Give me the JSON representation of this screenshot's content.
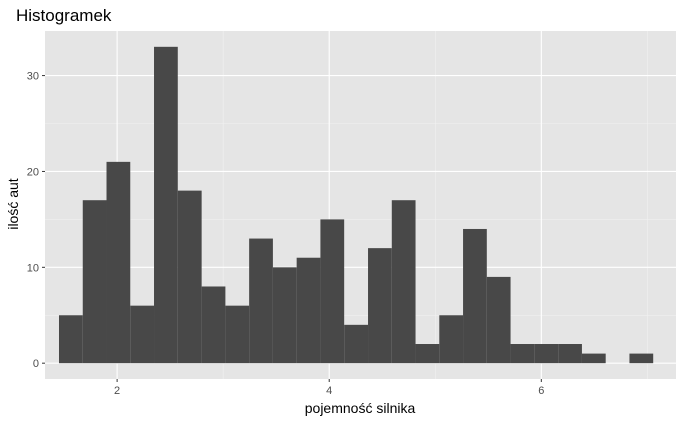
{
  "chart_data": {
    "type": "bar",
    "title": "Histogramek",
    "xlabel": "pojemność silnika",
    "ylabel": "ilość aut",
    "xlim": [
      1.32,
      7.27
    ],
    "ylim": [
      -1.65,
      34.65
    ],
    "x_ticks": [
      2,
      4,
      6
    ],
    "y_ticks": [
      0,
      10,
      20,
      30
    ],
    "bin_width": 0.2241,
    "bins": [
      {
        "x0": 1.452,
        "x1": 1.676,
        "count": 5
      },
      {
        "x0": 1.676,
        "x1": 1.9,
        "count": 17
      },
      {
        "x0": 1.9,
        "x1": 2.124,
        "count": 21
      },
      {
        "x0": 2.124,
        "x1": 2.348,
        "count": 6
      },
      {
        "x0": 2.348,
        "x1": 2.572,
        "count": 33
      },
      {
        "x0": 2.572,
        "x1": 2.797,
        "count": 18
      },
      {
        "x0": 2.797,
        "x1": 3.021,
        "count": 8
      },
      {
        "x0": 3.021,
        "x1": 3.245,
        "count": 6
      },
      {
        "x0": 3.245,
        "x1": 3.469,
        "count": 13
      },
      {
        "x0": 3.469,
        "x1": 3.693,
        "count": 10
      },
      {
        "x0": 3.693,
        "x1": 3.917,
        "count": 11
      },
      {
        "x0": 3.917,
        "x1": 4.141,
        "count": 15
      },
      {
        "x0": 4.141,
        "x1": 4.366,
        "count": 4
      },
      {
        "x0": 4.366,
        "x1": 4.59,
        "count": 12
      },
      {
        "x0": 4.59,
        "x1": 4.814,
        "count": 17
      },
      {
        "x0": 4.814,
        "x1": 5.038,
        "count": 2
      },
      {
        "x0": 5.038,
        "x1": 5.262,
        "count": 5
      },
      {
        "x0": 5.262,
        "x1": 5.486,
        "count": 14
      },
      {
        "x0": 5.486,
        "x1": 5.71,
        "count": 9
      },
      {
        "x0": 5.71,
        "x1": 5.934,
        "count": 2
      },
      {
        "x0": 5.934,
        "x1": 6.159,
        "count": 2
      },
      {
        "x0": 6.159,
        "x1": 6.383,
        "count": 2
      },
      {
        "x0": 6.383,
        "x1": 6.607,
        "count": 1
      },
      {
        "x0": 6.831,
        "x1": 7.055,
        "count": 1
      }
    ],
    "grid": true,
    "colors": {
      "panel": "#e5e5e5",
      "grid_major": "#ffffff",
      "grid_minor": "#f2f2f2",
      "bar": "#484848",
      "tick": "#333333"
    }
  }
}
